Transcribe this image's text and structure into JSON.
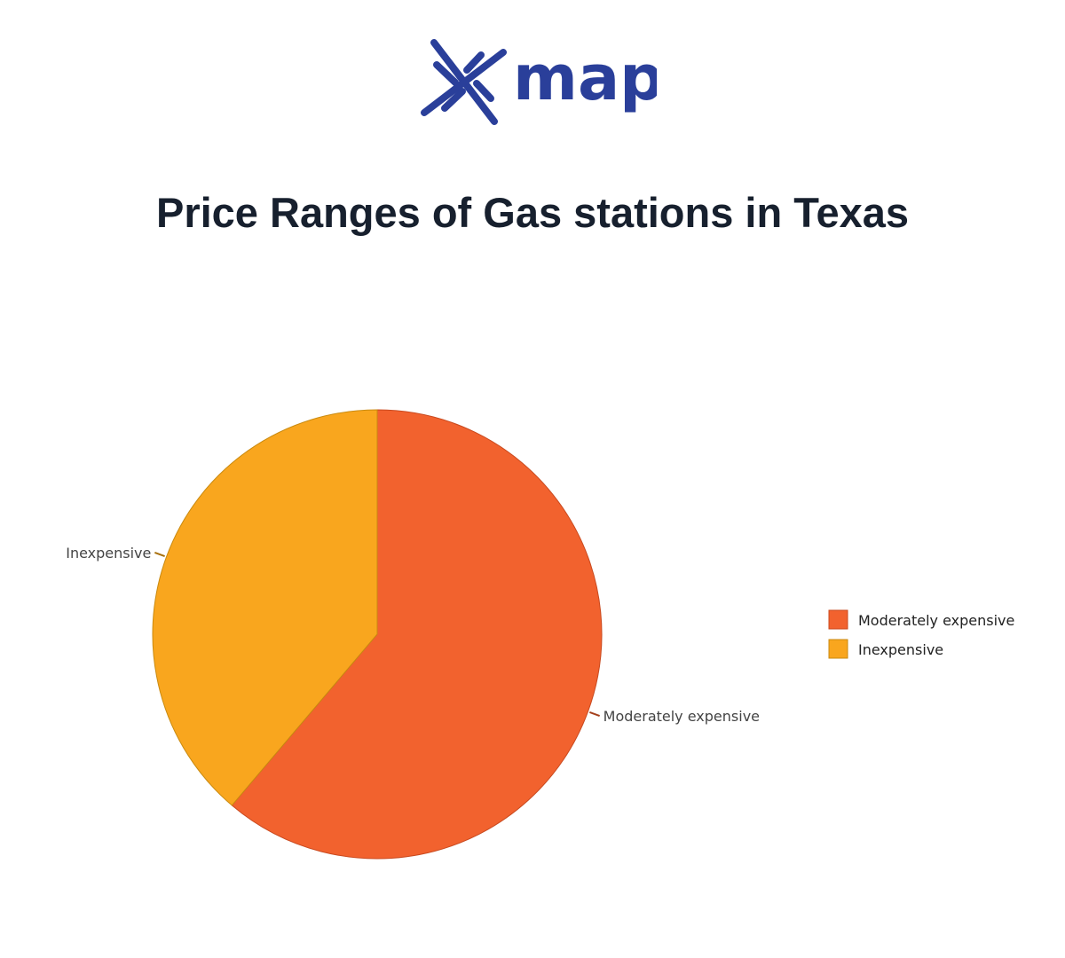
{
  "logo": {
    "text": "map",
    "color": "#2a3f9a"
  },
  "chart_data": {
    "type": "pie",
    "title": "Price Ranges of Gas stations in Texas",
    "slices": [
      {
        "label": "Moderately expensive",
        "value": 61.2,
        "color": "#f2622e"
      },
      {
        "label": "Inexpensive",
        "value": 38.8,
        "color": "#f9a61e"
      }
    ],
    "start_angle": "top",
    "direction": "clockwise",
    "legend": {
      "position": "right",
      "entries": [
        "Moderately expensive",
        "Inexpensive"
      ]
    }
  }
}
